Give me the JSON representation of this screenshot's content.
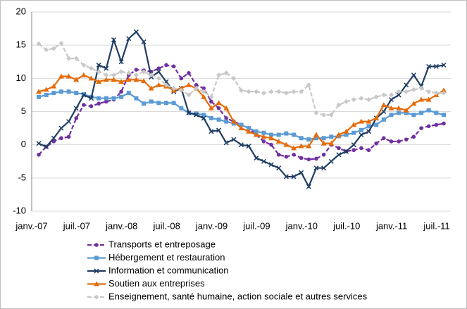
{
  "chart_data": {
    "type": "line",
    "categories": [
      "janv.-07",
      null,
      null,
      null,
      null,
      null,
      "juil.-07",
      null,
      null,
      null,
      null,
      null,
      "janv.-08",
      null,
      null,
      null,
      null,
      null,
      "juil.-08",
      null,
      null,
      null,
      null,
      null,
      "janv.-09",
      null,
      null,
      null,
      null,
      null,
      "juil.-09",
      null,
      null,
      null,
      null,
      null,
      "janv.-10",
      null,
      null,
      null,
      null,
      null,
      "juil.-10",
      null,
      null,
      null,
      null,
      null,
      "janv.-11",
      null,
      null,
      null,
      null,
      null,
      "juil.-11"
    ],
    "series": [
      {
        "name": "Transports et entreposage",
        "color": "#7030a0",
        "dashed": true,
        "marker": "circle",
        "values": [
          -1.5,
          -0.3,
          0.5,
          1,
          1.2,
          4,
          6,
          5.8,
          6.2,
          6.5,
          6.8,
          8,
          10.5,
          11.3,
          11.2,
          11,
          11.5,
          12,
          11.8,
          10,
          10.8,
          9,
          8.5,
          6.5,
          5.5,
          4,
          3.5,
          3,
          2.5,
          1.5,
          0.5,
          0,
          -1.5,
          -1.8,
          -1.5,
          -2,
          -2.2,
          -2.1,
          -1.5,
          0,
          -0.5,
          -1,
          -0.8,
          -0.5,
          -0.8,
          0.2,
          1,
          0.5,
          0.5,
          0.8,
          1.2,
          2.5,
          2.8,
          3,
          3.2
        ]
      },
      {
        "name": "Hébergement et restauration",
        "color": "#5b9bd5",
        "dashed": false,
        "marker": "square",
        "values": [
          7.2,
          7.5,
          7.8,
          8,
          8,
          7.8,
          7.6,
          7.2,
          7,
          7,
          7,
          7.2,
          7.8,
          7,
          6.2,
          6.5,
          6.3,
          6.3,
          6.3,
          5.5,
          4.8,
          4.7,
          4.5,
          4,
          3.8,
          3.5,
          3.2,
          3,
          2.5,
          2,
          1.8,
          1.5,
          1.5,
          1.7,
          1.5,
          1,
          0.8,
          1,
          1,
          1.2,
          1.3,
          1.5,
          1.8,
          2.2,
          2.8,
          3,
          3.8,
          4.5,
          4.8,
          4.8,
          4.5,
          4.8,
          5.2,
          4.8,
          4.5
        ]
      },
      {
        "name": "Information et communication",
        "color": "#1f3d63",
        "dashed": false,
        "marker": "cross",
        "values": [
          0.2,
          -0.3,
          1,
          2.5,
          3.5,
          5.5,
          7.5,
          7,
          12,
          11.5,
          15.8,
          12.5,
          16,
          17,
          15.5,
          10.2,
          11,
          9.5,
          8,
          8.5,
          4.8,
          4.5,
          4,
          2,
          2.2,
          0.3,
          0.8,
          0,
          -0.2,
          -2,
          -2.5,
          -3,
          -3.5,
          -4.8,
          -4.8,
          -4.2,
          -6.3,
          -3.5,
          -3.5,
          -2.5,
          -1.5,
          -1,
          0,
          1.5,
          2,
          4,
          5,
          6.8,
          7.5,
          9,
          10.5,
          8.8,
          11.8,
          11.8,
          12
        ]
      },
      {
        "name": "Soutien aux entreprises",
        "color": "#e46c0a",
        "dashed": false,
        "marker": "triangle",
        "values": [
          8,
          8.3,
          8.8,
          10.3,
          10.3,
          9.8,
          10.5,
          10,
          9.5,
          9.8,
          9.8,
          9.5,
          9.8,
          9.8,
          9.6,
          8.5,
          9,
          8.8,
          8.2,
          8.5,
          9,
          8.5,
          7.2,
          5.5,
          6.3,
          5.5,
          3.5,
          2.5,
          2,
          1.5,
          1.2,
          1,
          0.5,
          0,
          -0.5,
          -0.2,
          -0.2,
          1.5,
          0.2,
          0.2,
          1.5,
          2,
          3,
          3.5,
          3.5,
          4,
          6,
          5.5,
          5.5,
          5.2,
          6.2,
          6.8,
          6.8,
          7.5,
          8.2
        ]
      },
      {
        "name": "Enseignement, santé humaine, action sociale et autres services",
        "color": "#c8c8c8",
        "dashed": true,
        "marker": "diamond",
        "values": [
          15.2,
          14.3,
          14.5,
          15.3,
          13,
          13,
          12,
          11.5,
          11,
          10.5,
          10.5,
          11,
          10.8,
          10.5,
          11,
          10.5,
          10,
          9,
          8.5,
          8.2,
          7.5,
          8.5,
          8,
          7.2,
          10.5,
          10.8,
          10,
          8.2,
          8,
          8,
          7.8,
          8,
          8,
          7.8,
          8,
          8,
          9,
          4.8,
          4.5,
          4.5,
          6,
          6.5,
          6.8,
          7,
          6.8,
          7.2,
          7.5,
          7.5,
          8,
          8,
          8.3,
          8.5,
          8,
          7.8,
          7.8
        ]
      }
    ],
    "ylim": [
      -10,
      20
    ],
    "yticks": [
      -10,
      -5,
      0,
      5,
      10,
      15,
      20
    ],
    "grid": true
  }
}
